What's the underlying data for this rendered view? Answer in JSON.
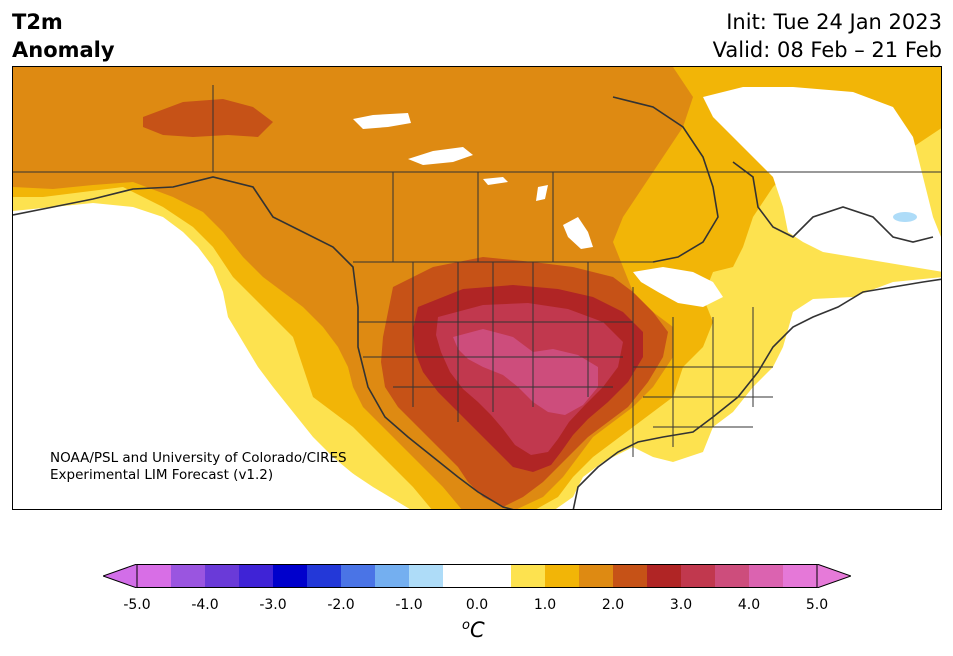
{
  "header": {
    "title_line1": "T2m",
    "title_line2": "Anomaly",
    "init": "Init: Tue 24 Jan 2023",
    "valid": "Valid: 08 Feb – 21 Feb"
  },
  "credit": {
    "line1": "NOAA/PSL and University of Colorado/CIRES",
    "line2": "Experimental LIM Forecast (v1.2)"
  },
  "colorbar": {
    "unit": "C",
    "unit_prefix": "o",
    "ticks": [
      "-5.0",
      "-4.0",
      "-3.0",
      "-2.0",
      "-1.0",
      "0.0",
      "1.0",
      "2.0",
      "3.0",
      "4.0",
      "5.0"
    ],
    "colors": [
      "#d86ee6",
      "#9a55e0",
      "#6a3ad8",
      "#3f23d6",
      "#0000cc",
      "#2338d8",
      "#4a74e6",
      "#74aff0",
      "#aedcf8",
      "#ffffff",
      "#ffffff",
      "#fde24f",
      "#f2b507",
      "#de8a12",
      "#c65217",
      "#b02525",
      "#c1384e",
      "#cd4d7c",
      "#db63b0",
      "#e578d8"
    ],
    "under_color": "#d26ee8",
    "over_color": "#e67ad9"
  },
  "map_colors": {
    "level_0_5": "#fde24f",
    "level_1_0": "#f2b507",
    "level_1_5": "#de8a12",
    "level_2_0": "#c65217",
    "level_2_5": "#b02525",
    "level_3_0": "#c1384e",
    "level_3_5": "#cd4d7c",
    "negative_0_5": "#aedcf8",
    "land_white": "#ffffff",
    "borders": "#333333"
  }
}
